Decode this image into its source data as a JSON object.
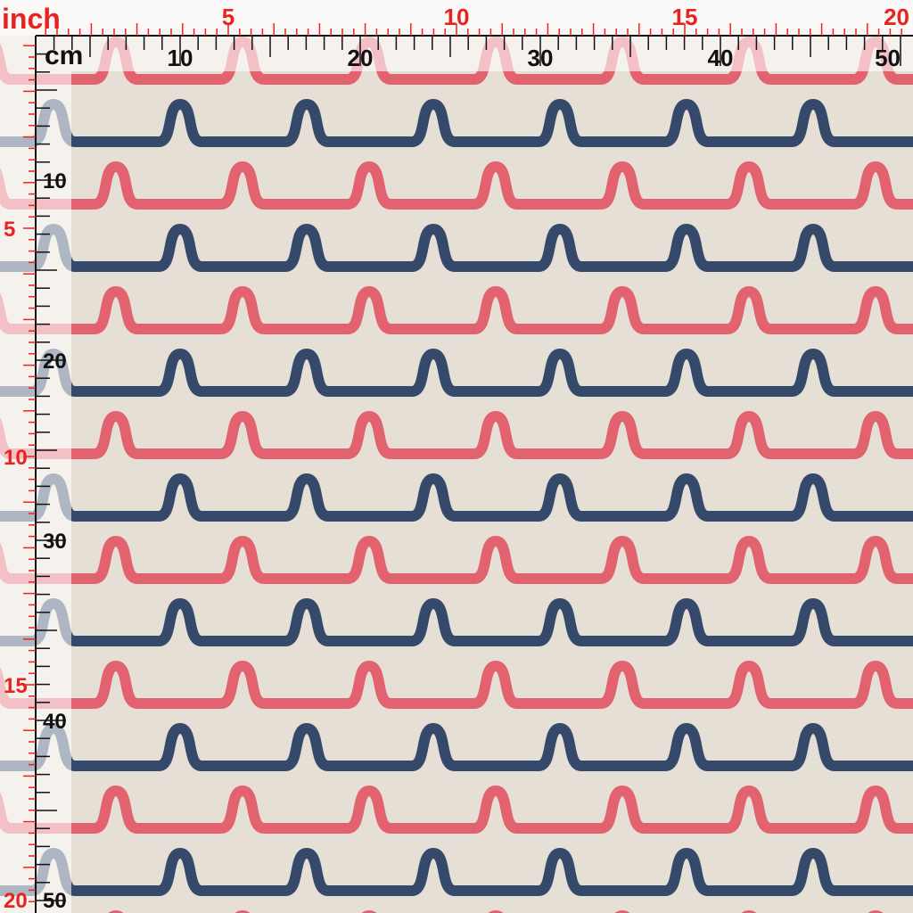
{
  "ruler": {
    "inch_unit": "inch",
    "cm_unit": "cm",
    "top_inch_labels": [
      "5",
      "10",
      "15",
      "20"
    ],
    "top_cm_labels": [
      "10",
      "20",
      "30",
      "40",
      "50"
    ],
    "left_inch_labels": [
      "5",
      "10",
      "15",
      "20"
    ],
    "left_cm_labels": [
      "10",
      "20",
      "30",
      "40",
      "50"
    ]
  }
}
